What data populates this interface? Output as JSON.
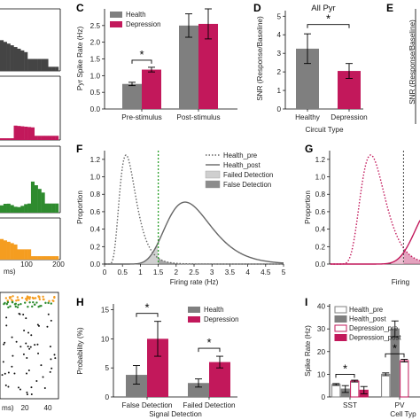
{
  "colors": {
    "health": "#7f7f7f",
    "depression": "#c2185b",
    "health_line": "#666666",
    "threshold": "#2ca02c",
    "gray_fill": "#999999",
    "pink_fill": "#d87aa3"
  },
  "panels": {
    "left_hist": {
      "xticks": [
        "0",
        "100",
        "200"
      ],
      "xlabel_fragment": "ms)",
      "colors": [
        "#444444",
        "#c2185b",
        "#2e8b2e",
        "#f59d20"
      ]
    },
    "left_raster": {
      "xticks": [
        "0",
        "20",
        "40"
      ],
      "xlabel_fragment": "ms)"
    },
    "C": {
      "letter": "C"
    },
    "D": {
      "letter": "D",
      "title": "All Pyr"
    },
    "E": {
      "letter": "E",
      "ylabel": "SNR (Response/Baseline)"
    },
    "F": {
      "letter": "F"
    },
    "G": {
      "letter": "G",
      "xlabel_fragment": "Firing"
    },
    "H": {
      "letter": "H"
    },
    "I": {
      "letter": "I",
      "xlabel_fragment": "Cell Typ"
    }
  },
  "chart_data": [
    {
      "id": "C",
      "type": "bar",
      "categories": [
        "Pre-stimulus",
        "Post-stimulus"
      ],
      "series": [
        {
          "name": "Health",
          "values": [
            0.75,
            2.5
          ],
          "errors": [
            0.05,
            0.35
          ],
          "color": "#7f7f7f"
        },
        {
          "name": "Depression",
          "values": [
            1.18,
            2.55
          ],
          "errors": [
            0.07,
            0.45
          ],
          "color": "#c2185b"
        }
      ],
      "ylabel": "Pyr Spike Rate (Hz)",
      "ylim": [
        0,
        3.0
      ],
      "yticks": [
        0,
        0.5,
        1.0,
        1.5,
        2.0,
        2.5
      ],
      "annotations": [
        {
          "text": "*",
          "between": "Pre-stimulus"
        }
      ],
      "legend": "top-left"
    },
    {
      "id": "D",
      "type": "bar",
      "categories": [
        "Healthy",
        "Depression"
      ],
      "values": [
        3.25,
        2.05
      ],
      "errors": [
        0.8,
        0.4
      ],
      "colors": [
        "#7f7f7f",
        "#c2185b"
      ],
      "title": "All Pyr",
      "xlabel": "Circuit Type",
      "ylabel": "SNR (Response/Baseline)",
      "ylim": [
        0,
        5.3
      ],
      "yticks": [
        0,
        1,
        2,
        3,
        4,
        5
      ],
      "annotations": [
        {
          "text": "*",
          "between": "Healthy-Depression"
        }
      ]
    },
    {
      "id": "F",
      "type": "line",
      "xlabel": "Firing rate (Hz)",
      "ylabel": "Proportion",
      "xlim": [
        0,
        5
      ],
      "ylim": [
        0,
        1.3
      ],
      "xticks": [
        0,
        0.5,
        1,
        1.5,
        2,
        2.5,
        3,
        3.5,
        4,
        4.5,
        5
      ],
      "yticks": [
        0.0,
        0.2,
        0.4,
        0.6,
        0.8,
        1.0,
        1.2
      ],
      "series": [
        {
          "name": "Health_pre",
          "style": "dotted",
          "dist": "lognormal",
          "mode": 0.6,
          "peak": 1.25
        },
        {
          "name": "Health_post",
          "style": "solid",
          "dist": "lognormal",
          "mode": 2.25,
          "peak": 0.71
        }
      ],
      "threshold": 1.5,
      "legend": [
        {
          "name": "Health_pre",
          "kind": "dotted"
        },
        {
          "name": "Health_post",
          "kind": "solid"
        },
        {
          "name": "Failed Detection",
          "kind": "patch_light"
        },
        {
          "name": "False Detection",
          "kind": "patch_dark"
        }
      ]
    },
    {
      "id": "G",
      "type": "line",
      "ylabel": "Proportion",
      "xlim": [
        0,
        2.2
      ],
      "ylim": [
        0,
        1.3
      ],
      "yticks": [
        0.0,
        0.2,
        0.4,
        0.6,
        0.8,
        1.0,
        1.2
      ],
      "series": [
        {
          "name": "Depression_pre",
          "style": "dotted",
          "dist": "lognormal",
          "mode": 1.0,
          "peak": 1.25
        },
        {
          "name": "Depression_post",
          "style": "solid",
          "dist": "lognormal",
          "mode": 2.6,
          "peak": 0.71
        }
      ],
      "threshold": 1.8
    },
    {
      "id": "H",
      "type": "bar",
      "categories": [
        "False Detection",
        "Failed Detection"
      ],
      "series": [
        {
          "name": "Health",
          "values": [
            3.8,
            2.4
          ],
          "errors": [
            1.6,
            0.7
          ],
          "color": "#7f7f7f"
        },
        {
          "name": "Depression",
          "values": [
            10.0,
            6.0
          ],
          "errors": [
            3.0,
            1.0
          ],
          "color": "#c2185b"
        }
      ],
      "xlabel": "Signal Detection",
      "ylabel": "Probability (%)",
      "ylim": [
        0,
        16
      ],
      "yticks": [
        0,
        5,
        10,
        15
      ],
      "annotations": [
        {
          "text": "*",
          "between": "False Detection"
        },
        {
          "text": "*",
          "between": "Failed Detection"
        }
      ],
      "legend": "top-right"
    },
    {
      "id": "I",
      "type": "bar",
      "categories": [
        "SST",
        "PV"
      ],
      "series": [
        {
          "name": "Health_pre",
          "values": [
            5.5,
            10.0
          ],
          "errors": [
            0.4,
            0.6
          ],
          "style": "outline",
          "color": "#7f7f7f"
        },
        {
          "name": "Health_post",
          "values": [
            3.5,
            30.0
          ],
          "errors": [
            1.5,
            3.5
          ],
          "style": "filled",
          "color": "#7f7f7f"
        },
        {
          "name": "Depression_pre",
          "values": [
            7.0,
            16.0
          ],
          "errors": [
            0.4,
            0.6
          ],
          "style": "outline",
          "color": "#c2185b"
        },
        {
          "name": "Depression_post",
          "values": [
            3.0,
            0
          ],
          "errors": [
            1.6,
            0
          ],
          "style": "filled",
          "color": "#c2185b"
        }
      ],
      "xlabel": "Cell Typ",
      "ylabel": "Spike Rate (Hz)",
      "ylim": [
        0,
        41
      ],
      "yticks": [
        0,
        10,
        20,
        30,
        40
      ],
      "annotations": [
        {
          "text": "*",
          "between": "SST"
        },
        {
          "text": "*",
          "between": "PV"
        }
      ],
      "legend": "top-left"
    }
  ]
}
